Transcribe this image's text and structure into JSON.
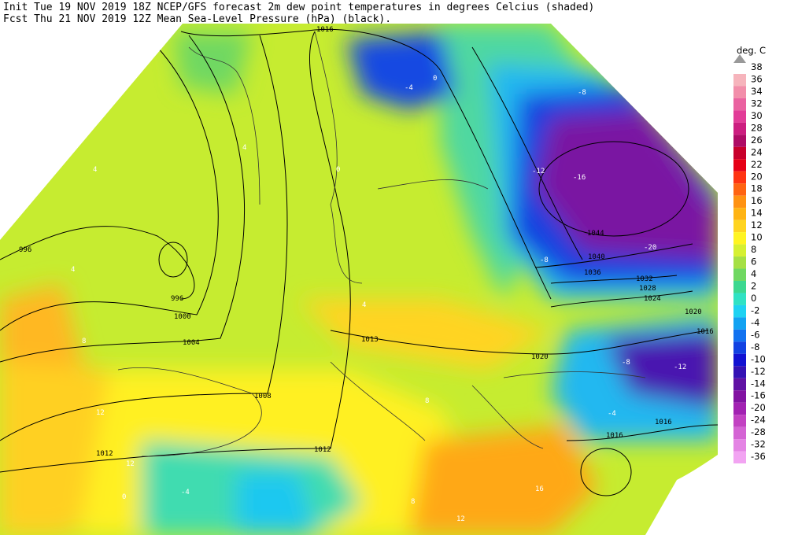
{
  "header": {
    "line1": "Init  Tue 19 NOV 2019 18Z   NCEP/GFS forecast 2m dew point temperatures in degrees Celcius (shaded)",
    "line2": "Fcst Thu 21 NOV 2019 12Z   Mean Sea-Level Pressure (hPa) (black)."
  },
  "legend": {
    "title": "deg. C",
    "top_label": "38",
    "labels": [
      "36",
      "34",
      "32",
      "30",
      "28",
      "26",
      "24",
      "22",
      "20",
      "18",
      "16",
      "14",
      "12",
      "10",
      "8",
      "6",
      "4",
      "2",
      "0",
      "-2",
      "-4",
      "-6",
      "-8",
      "-10",
      "-12",
      "-14",
      "-16",
      "-20",
      "-24",
      "-28",
      "-32",
      "-36"
    ],
    "colors": [
      "#f6b4bc",
      "#f28eaa",
      "#ea62a0",
      "#e23c98",
      "#cc1e80",
      "#ae0c66",
      "#c8002c",
      "#e60016",
      "#ff3412",
      "#ff6412",
      "#ff9212",
      "#ffb414",
      "#ffd420",
      "#fff422",
      "#d6f032",
      "#a6e044",
      "#70d862",
      "#3cd890",
      "#30e2c4",
      "#1ed2f2",
      "#12a2f2",
      "#1272f0",
      "#1242e2",
      "#1212d2",
      "#3412b4",
      "#6012a4",
      "#8212a2",
      "#a222b2",
      "#c242c2",
      "#d464d4",
      "#e484e4",
      "#f2a4f2"
    ]
  },
  "pressure_labels": [
    "1016",
    "996",
    "996",
    "1000",
    "1004",
    "1008",
    "1012",
    "1012",
    "1013",
    "1020",
    "1024",
    "1028",
    "1032",
    "1036",
    "1040",
    "1044",
    "1020",
    "1016",
    "1016",
    "1016"
  ],
  "dewpoint_labels": [
    "4",
    "4",
    "4",
    "4",
    "8",
    "12",
    "12",
    "0",
    "-4",
    "0",
    "-8",
    "-12",
    "-16",
    "-20",
    "-8",
    "-12",
    "-8",
    "16",
    "12",
    "8",
    "-4",
    "0",
    "-4",
    "8"
  ]
}
